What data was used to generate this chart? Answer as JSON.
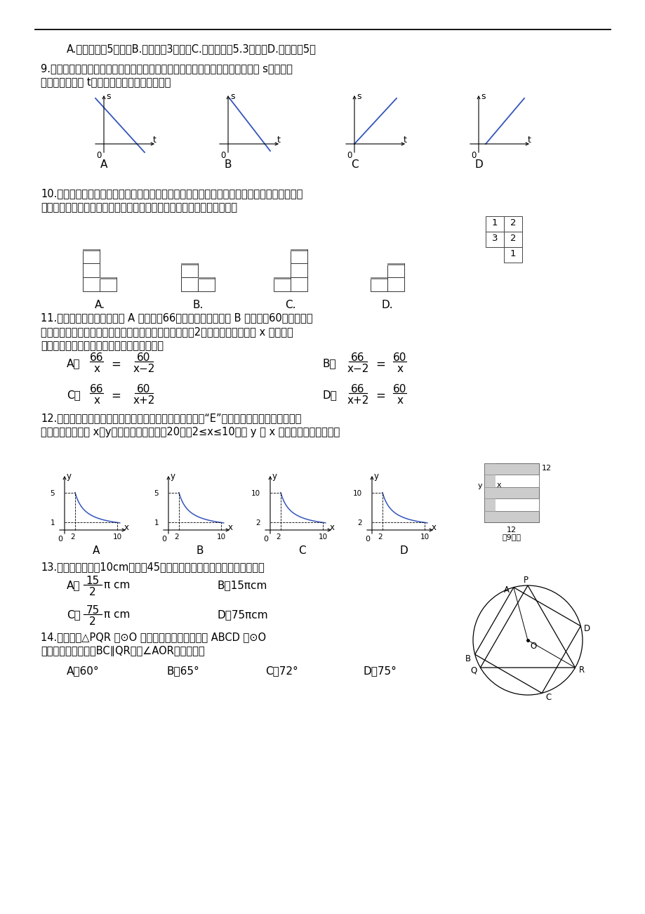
{
  "bg_color": "#ffffff",
  "blue_color": "#3355bb",
  "black": "#000000",
  "q8": "A.　中位数是5呐　　B.　极差是3呐　　C.　平均数是5.3呐　　D.　众数是5呐",
  "q9_1": "9.　一辆汽车由甲地匀速驶往乙地，下列图象中大致能反映汽车距离乙地的路程 s（千米）",
  "q9_2": "　　和行驶时间 t（小时）的关系的是（　　）",
  "q10_1": "10.　由一些大小相同的小正方体组成的几何体的俧视图如图所示，其中正方形中的数字表示在",
  "q10_2": "　　该位置上的小正方体的个数，那么，这个几何体的左视图是（　　）",
  "q11_1": "11.　炎炎夏日，甲安装队为 A 小区安装66台空调，乙安装队为 B 小区安装60台空调，两",
  "q11_2": "　　队同时开工且恰好同时完工，甲队比乙队每天多安装2台．设乙队每天安装 x 台，根据",
  "q11_3": "　　题意，下面所列方程中正确的是（　　）",
  "q12_1": "12.　一张正方形的纸片，剪去两个一样的小矩形得到一个“E”图案，如图所示，设小矩形的",
  "q12_2": "　　长和宽分别为 x、y，剪去部分的面积为20，若2≤x≤10，则 y 与 x 的函数图象是（　　）",
  "q13": "13.　挂钟分针的长10cm，经过45分钟，它的针尖转过的弧长是（　　）",
  "q14_1": "14.　如图，△PQR 是⊙O 的内接正三角形，四边形 ABCD 是⊙O",
  "q14_2": "　　的内接正方形，BC∥QR，则∠AOR＝（　　）"
}
